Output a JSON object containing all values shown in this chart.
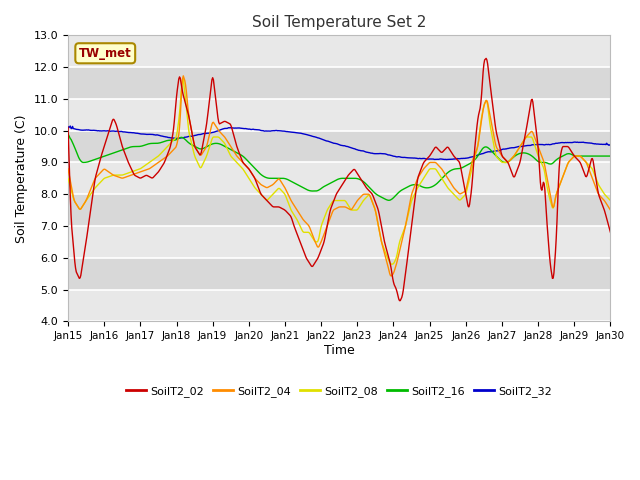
{
  "title": "Soil Temperature Set 2",
  "xlabel": "Time",
  "ylabel": "Soil Temperature (C)",
  "ylim": [
    4.0,
    13.0
  ],
  "yticks": [
    4.0,
    5.0,
    6.0,
    7.0,
    8.0,
    9.0,
    10.0,
    11.0,
    12.0,
    13.0
  ],
  "xlim": [
    0,
    360
  ],
  "xtick_positions": [
    0,
    24,
    48,
    72,
    96,
    120,
    144,
    168,
    192,
    216,
    240,
    264,
    288,
    312,
    336,
    360
  ],
  "xtick_labels": [
    "Jan 15",
    "Jan 16",
    "Jan 17",
    "Jan 18",
    "Jan 19",
    "Jan 20",
    "Jan 21",
    "Jan 22",
    "Jan 23",
    "Jan 24",
    "Jan 25",
    "Jan 26",
    "Jan 27",
    "Jan 28",
    "Jan 29",
    "Jan 30"
  ],
  "series_colors": {
    "SoilT2_02": "#cc0000",
    "SoilT2_04": "#ff8c00",
    "SoilT2_08": "#e0e000",
    "SoilT2_16": "#00bb00",
    "SoilT2_32": "#0000cc"
  },
  "annotation_text": "TW_met",
  "annotation_color": "#990000",
  "annotation_bg": "#ffffcc",
  "annotation_border": "#aa8800",
  "fig_bg": "#ffffff",
  "plot_bg": "#e8e8e8",
  "band_color": "#d8d8d8",
  "grid_color": "#ffffff",
  "linewidth": 1.0
}
